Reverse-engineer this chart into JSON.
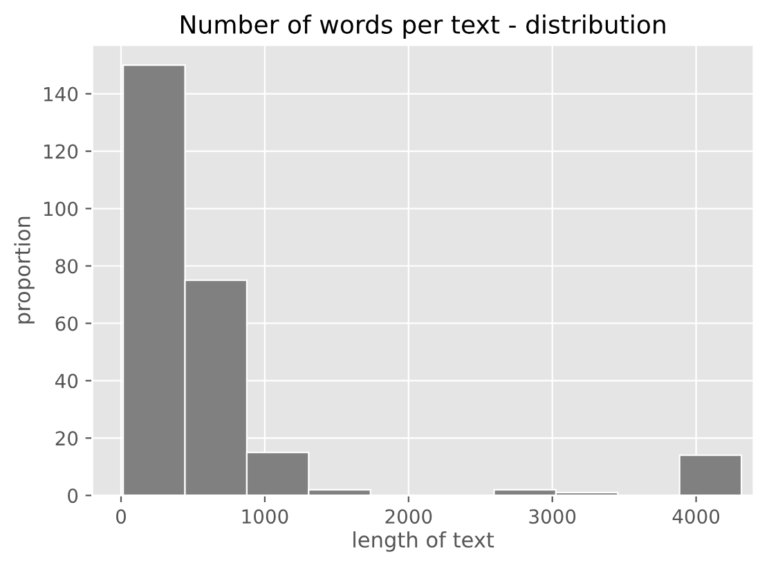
{
  "chart_data": {
    "type": "histogram",
    "title": "Number of words per text - distribution",
    "xlabel": "length of text",
    "ylabel": "proportion",
    "bins": [
      15,
      445,
      875,
      1305,
      1735,
      2165,
      2595,
      3025,
      3455,
      3885,
      4315
    ],
    "values": [
      150,
      75,
      15,
      2,
      0,
      0,
      2,
      1,
      0,
      14
    ],
    "color": "#808080",
    "xlim": [
      -200,
      4400
    ],
    "ylim": [
      0,
      157
    ],
    "xticks": [
      0,
      1000,
      2000,
      3000,
      4000
    ],
    "yticks": [
      0,
      20,
      40,
      60,
      80,
      100,
      120,
      140
    ],
    "grid": true
  }
}
